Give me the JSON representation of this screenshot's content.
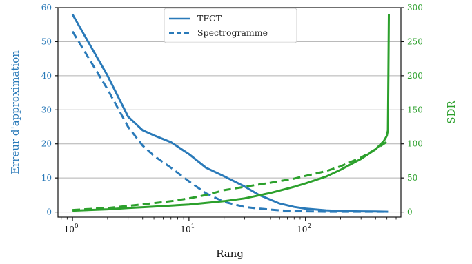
{
  "chart_data": {
    "type": "line",
    "xlabel": "Rang",
    "ylabel_left": "Erreur d'approximation",
    "ylabel_right": "SDR",
    "x_scale": "log",
    "xlim": [
      0.75,
      660
    ],
    "ylim_left": [
      -1.5,
      60
    ],
    "ylim_right": [
      -7.5,
      300
    ],
    "x_ticks": [
      1,
      10,
      100
    ],
    "x_tick_labels": [
      "10",
      "10",
      "10"
    ],
    "x_tick_exponents": [
      "0",
      "1",
      "2"
    ],
    "y_ticks_left": [
      0,
      10,
      20,
      30,
      40,
      50,
      60
    ],
    "y_ticks_right": [
      0,
      50,
      100,
      150,
      200,
      250,
      300
    ],
    "grid": "horizontal",
    "legend_position": "top-center",
    "colors": {
      "left_axis": "#2a7ab9",
      "right_axis": "#2ca02c",
      "grid": "#b0b0b0"
    },
    "legend": [
      {
        "label": "TFCT",
        "style": "solid"
      },
      {
        "label": "Spectrogramme",
        "style": "dashed"
      }
    ],
    "series": [
      {
        "name": "TFCT",
        "axis": "left",
        "style": "solid",
        "color": "#2a7ab9",
        "x": [
          1,
          2,
          3,
          4,
          5,
          7,
          10,
          14,
          20,
          30,
          40,
          60,
          80,
          100,
          150,
          200,
          300,
          400,
          512
        ],
        "y": [
          58,
          40,
          28,
          24,
          22.5,
          20.5,
          17,
          13,
          10.5,
          7.5,
          5,
          2.5,
          1.5,
          1,
          0.5,
          0.3,
          0.2,
          0.15,
          0.1
        ]
      },
      {
        "name": "Spectrogramme",
        "axis": "left",
        "style": "dashed",
        "color": "#2a7ab9",
        "x": [
          1,
          2,
          3,
          4,
          5,
          7,
          10,
          14,
          20,
          30,
          40,
          60,
          80,
          100,
          150,
          200,
          300,
          400,
          512
        ],
        "y": [
          53,
          36,
          25,
          19.5,
          16.5,
          13,
          9,
          5.5,
          3,
          1.5,
          1,
          0.5,
          0.3,
          0.2,
          0.1,
          0.1,
          0.1,
          0.1,
          0.1
        ]
      },
      {
        "name": "TFCT",
        "axis": "right",
        "style": "solid",
        "color": "#2ca02c",
        "x": [
          1,
          2,
          3,
          5,
          10,
          20,
          30,
          50,
          80,
          100,
          150,
          200,
          300,
          400,
          470,
          500,
          510,
          515,
          520
        ],
        "y": [
          2,
          4,
          6,
          8,
          11,
          16,
          20,
          28,
          37,
          42,
          52,
          62,
          78,
          92,
          104,
          112,
          120,
          200,
          290
        ]
      },
      {
        "name": "Spectrogramme",
        "axis": "right",
        "style": "dashed",
        "color": "#2ca02c",
        "x": [
          1,
          2,
          3,
          5,
          7,
          10,
          14,
          20,
          30,
          50,
          80,
          100,
          150,
          200,
          300,
          400,
          470,
          500,
          512
        ],
        "y": [
          3,
          6,
          9,
          13,
          16,
          20,
          25,
          32,
          37,
          43,
          49,
          53,
          60,
          67,
          80,
          92,
          100,
          103,
          105
        ]
      }
    ]
  }
}
